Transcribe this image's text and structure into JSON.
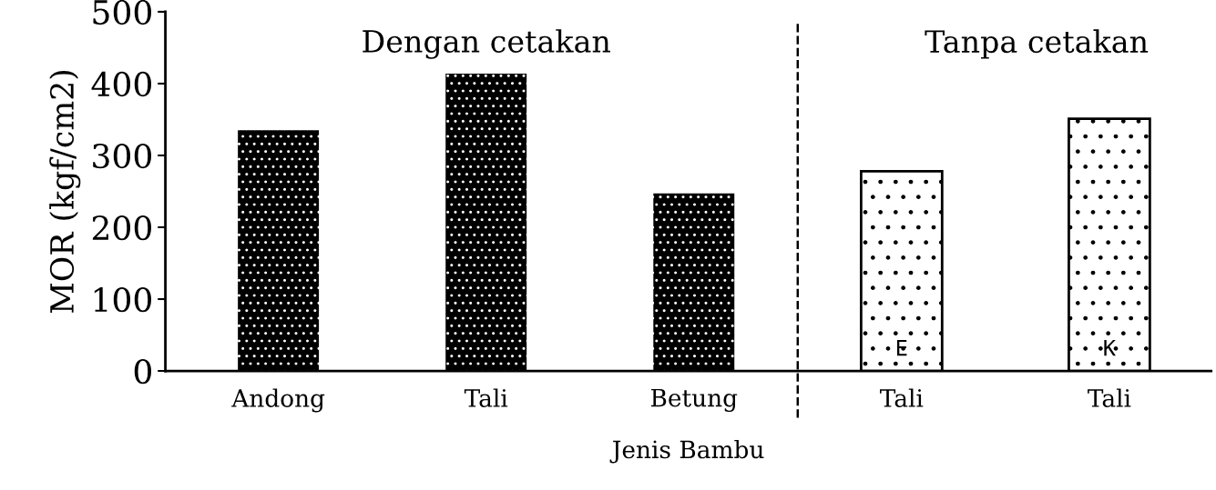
{
  "chart_data": {
    "type": "bar",
    "xlabel": "Jenis Bambu",
    "ylabel": "MOR (kgf/cm2)",
    "categories": [
      "Andong",
      "Tali",
      "Betung",
      "Tali",
      "Tali"
    ],
    "values": [
      335,
      414,
      247,
      278,
      351
    ],
    "colors": [
      "#000000",
      "#000000",
      "#000000",
      "#ffffff",
      "#ffffff"
    ],
    "ylim": [
      0,
      500
    ],
    "yticks": [
      0,
      100,
      200,
      300,
      400,
      500
    ],
    "grid": false,
    "annotations": [
      "Dengan cetakan",
      "Tanpa cetakan",
      "E",
      "K"
    ]
  }
}
